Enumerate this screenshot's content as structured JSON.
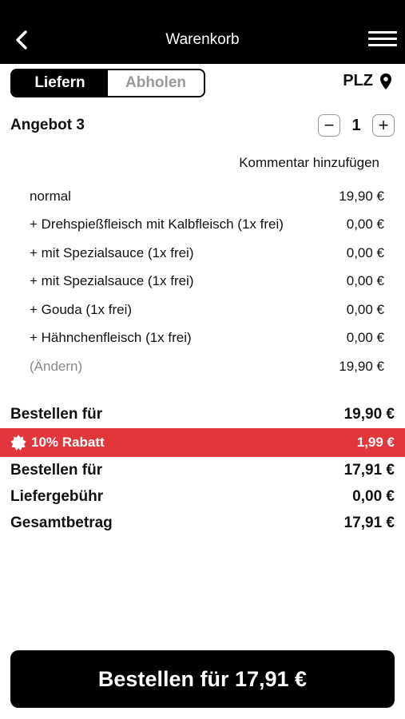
{
  "header": {
    "title": "Warenkorb",
    "back_icon": "back-arrow-icon",
    "menu_icon": "hamburger-menu-icon"
  },
  "delivery_toggle": {
    "options": [
      "Liefern",
      "Abholen"
    ],
    "selected": "Liefern"
  },
  "location": {
    "label": "PLZ",
    "icon": "map-pin-icon"
  },
  "cart_item": {
    "title": "Angebot 3",
    "quantity": "1",
    "minus_label": "−",
    "plus_label": "+",
    "comment_link": "Kommentar hinzufügen",
    "lines": [
      {
        "name": "normal",
        "price": "19,90 €"
      },
      {
        "name": "+ Drehspießfleisch mit Kalbfleisch (1x frei)",
        "price": "0,00 €"
      },
      {
        "name": "+ mit Spezialsauce (1x frei)",
        "price": "0,00 €"
      },
      {
        "name": "+ mit Spezialsauce (1x frei)",
        "price": "0,00 €"
      },
      {
        "name": "+ Gouda (1x frei)",
        "price": "0,00 €"
      },
      {
        "name": "+ Hähnchenfleisch (1x frei)",
        "price": "0,00 €"
      },
      {
        "name": "(Ändern)",
        "price": "19,90 €"
      }
    ]
  },
  "summary": {
    "subtotal_label": "Bestellen für",
    "subtotal_value": "19,90 €",
    "discount_label": "10% Rabatt",
    "discount_value": "1,99 €",
    "discount_icon": "discount-badge-icon",
    "after_discount_label": "Bestellen für",
    "after_discount_value": "17,91 €",
    "delivery_fee_label": "Liefergebühr",
    "delivery_fee_value": "0,00 €",
    "total_label": "Gesamtbetrag",
    "total_value": "17,91 €"
  },
  "order_button": {
    "label": "Bestellen für 17,91 €"
  },
  "colors": {
    "header_bg": "#000000",
    "discount_bg": "#e2363d",
    "button_bg": "#000000"
  }
}
